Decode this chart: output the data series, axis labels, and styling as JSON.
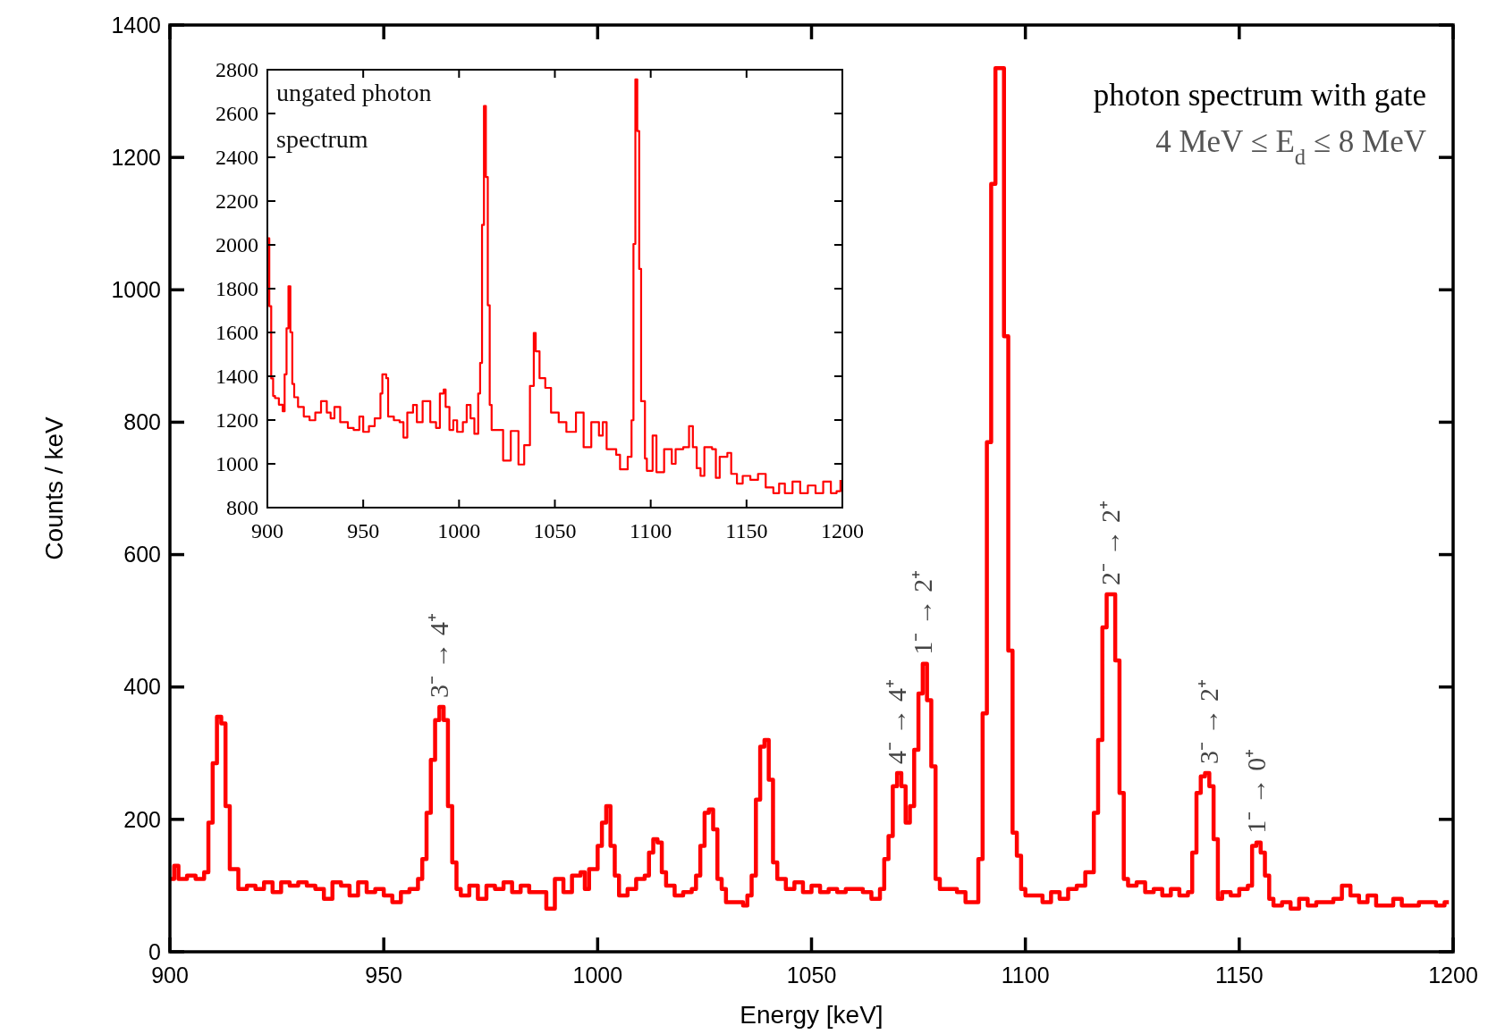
{
  "chart_data": [
    {
      "type": "step",
      "xlabel": "Energy [keV]",
      "ylabel": "Counts / keV",
      "xlim": [
        900,
        1200
      ],
      "xticks": [
        900,
        950,
        1000,
        1050,
        1100,
        1150,
        1200
      ],
      "ylim": [
        0,
        1400
      ],
      "yticks": [
        0,
        200,
        400,
        600,
        800,
        1000,
        1200,
        1400
      ],
      "series": [
        {
          "color": "#ff0000",
          "x": [
            900,
            901,
            902,
            904,
            906,
            908,
            909,
            910,
            911,
            912,
            913,
            914,
            915,
            916,
            918,
            920,
            922,
            924,
            926,
            928,
            930,
            932,
            934,
            936,
            938,
            940,
            942,
            944,
            946,
            948,
            950,
            952,
            954,
            956,
            958,
            959,
            960,
            961,
            962,
            963,
            964,
            965,
            966,
            967,
            968,
            970,
            972,
            974,
            976,
            978,
            980,
            982,
            984,
            986,
            988,
            990,
            992,
            994,
            996,
            997,
            998,
            1000,
            1001,
            1002,
            1003,
            1004,
            1005,
            1007,
            1009,
            1011,
            1012,
            1013,
            1014,
            1015,
            1016,
            1018,
            1020,
            1022,
            1023,
            1024,
            1025,
            1026,
            1027,
            1028,
            1029,
            1030,
            1032,
            1034,
            1035,
            1036,
            1037,
            1038,
            1039,
            1040,
            1041,
            1042,
            1044,
            1046,
            1048,
            1050,
            1052,
            1054,
            1056,
            1058,
            1060,
            1062,
            1064,
            1066,
            1067,
            1068,
            1069,
            1070,
            1071,
            1072,
            1073,
            1074,
            1075,
            1076,
            1077,
            1078,
            1079,
            1080,
            1082,
            1084,
            1086,
            1088,
            1089,
            1090,
            1091,
            1092,
            1093,
            1094,
            1095,
            1096,
            1097,
            1098,
            1099,
            1100,
            1102,
            1104,
            1106,
            1108,
            1110,
            1112,
            1114,
            1116,
            1117,
            1118,
            1119,
            1120,
            1121,
            1122,
            1123,
            1124,
            1126,
            1128,
            1130,
            1132,
            1134,
            1136,
            1138,
            1139,
            1140,
            1141,
            1142,
            1143,
            1144,
            1145,
            1146,
            1148,
            1150,
            1152,
            1153,
            1154,
            1155,
            1156,
            1157,
            1158,
            1160,
            1162,
            1164,
            1166,
            1168,
            1170,
            1172,
            1174,
            1176,
            1178,
            1180,
            1182,
            1184,
            1186,
            1188,
            1190,
            1192,
            1194,
            1196,
            1198,
            1199
          ],
          "values": [
            110,
            130,
            110,
            115,
            110,
            120,
            195,
            285,
            355,
            345,
            220,
            125,
            125,
            95,
            100,
            95,
            105,
            90,
            105,
            100,
            105,
            100,
            95,
            80,
            105,
            100,
            85,
            105,
            90,
            95,
            85,
            75,
            90,
            95,
            110,
            140,
            210,
            290,
            350,
            370,
            350,
            220,
            135,
            95,
            85,
            100,
            80,
            100,
            95,
            105,
            90,
            100,
            90,
            90,
            65,
            110,
            90,
            115,
            120,
            95,
            125,
            160,
            195,
            220,
            160,
            115,
            85,
            95,
            110,
            115,
            150,
            170,
            165,
            120,
            100,
            85,
            90,
            95,
            115,
            160,
            210,
            215,
            185,
            110,
            95,
            75,
            75,
            70,
            85,
            115,
            230,
            310,
            320,
            260,
            135,
            110,
            95,
            105,
            90,
            100,
            90,
            95,
            90,
            95,
            95,
            90,
            80,
            95,
            140,
            175,
            250,
            270,
            250,
            195,
            220,
            305,
            390,
            435,
            380,
            280,
            110,
            95,
            95,
            90,
            75,
            75,
            140,
            360,
            770,
            1160,
            1335,
            1335,
            930,
            455,
            180,
            145,
            95,
            85,
            85,
            75,
            90,
            80,
            95,
            100,
            120,
            210,
            320,
            490,
            540,
            540,
            440,
            240,
            110,
            100,
            105,
            90,
            95,
            85,
            95,
            85,
            90,
            150,
            240,
            265,
            270,
            250,
            170,
            80,
            90,
            85,
            95,
            100,
            160,
            165,
            150,
            115,
            80,
            70,
            75,
            65,
            80,
            70,
            75,
            75,
            80,
            100,
            85,
            75,
            85,
            70,
            70,
            80,
            70,
            70,
            75,
            75,
            70,
            75,
            75
          ]
        }
      ],
      "annotations": [
        "photon spectrum with gate",
        "4 MeV ≤ E$_{d}$ ≤ 8 MeV",
        {
          "text": "3⁻ → 4⁺",
          "x": 963,
          "y": 370
        },
        {
          "text": "4⁻ → 4⁺",
          "x": 1070,
          "y": 270
        },
        {
          "text": "1⁻ → 2⁺",
          "x": 1076,
          "y": 435
        },
        {
          "text": "2⁻ → 2⁺",
          "x": 1120,
          "y": 540
        },
        {
          "text": "3⁻ → 2⁺",
          "x": 1143,
          "y": 270
        },
        {
          "text": "1⁻ → 0⁺",
          "x": 1154,
          "y": 165
        }
      ]
    },
    {
      "type": "step",
      "xlim": [
        900,
        1200
      ],
      "xticks": [
        900,
        950,
        1000,
        1050,
        1100,
        1150,
        1200
      ],
      "ylim": [
        800,
        2800
      ],
      "yticks": [
        800,
        1000,
        1200,
        1400,
        1600,
        1800,
        2000,
        2200,
        2400,
        2600,
        2800
      ],
      "series": [
        {
          "color": "#ff0000",
          "x": [
            900,
            901,
            902,
            903,
            904,
            906,
            908,
            909,
            910,
            911,
            912,
            913,
            914,
            916,
            919,
            922,
            925,
            928,
            931,
            933,
            935,
            938,
            942,
            945,
            948,
            950,
            953,
            956,
            959,
            960,
            962,
            963,
            966,
            969,
            971,
            973,
            976,
            978,
            981,
            985,
            988,
            990,
            992,
            993,
            995,
            997,
            999,
            1002,
            1004,
            1006,
            1008,
            1010,
            1011,
            1012,
            1013,
            1014,
            1015,
            1016,
            1017,
            1020,
            1023,
            1027,
            1031,
            1034,
            1037,
            1039,
            1040,
            1042,
            1045,
            1048,
            1052,
            1056,
            1061,
            1065,
            1069,
            1073,
            1075,
            1077,
            1082,
            1084,
            1088,
            1090,
            1091,
            1092,
            1093,
            1094,
            1095,
            1097,
            1098,
            1101,
            1103,
            1107,
            1111,
            1113,
            1117,
            1120,
            1122,
            1124,
            1126,
            1128,
            1132,
            1134,
            1136,
            1140,
            1142,
            1145,
            1148,
            1152,
            1156,
            1160,
            1164,
            1167,
            1170,
            1174,
            1178,
            1182,
            1186,
            1190,
            1194,
            1197,
            1199
          ],
          "values": [
            2030,
            1720,
            1390,
            1310,
            1300,
            1270,
            1240,
            1409,
            1619,
            1811,
            1601,
            1365,
            1304,
            1260,
            1216,
            1199,
            1234,
            1286,
            1234,
            1208,
            1260,
            1190,
            1164,
            1155,
            1216,
            1146,
            1172,
            1208,
            1321,
            1409,
            1391,
            1216,
            1199,
            1190,
            1120,
            1234,
            1269,
            1190,
            1286,
            1190,
            1164,
            1321,
            1339,
            1260,
            1155,
            1199,
            1146,
            1190,
            1269,
            1208,
            1137,
            1321,
            1461,
            2091,
            2634,
            2310,
            1724,
            1269,
            1155,
            1155,
            1015,
            1150,
            997,
            1085,
            1356,
            1598,
            1514,
            1391,
            1347,
            1234,
            1190,
            1146,
            1234,
            1076,
            1190,
            1129,
            1190,
            1067,
            1041,
            975,
            1032,
            1199,
            2004,
            2756,
            2520,
            1890,
            1286,
            1024,
            968,
            1129,
            962,
            1067,
            1000,
            1067,
            1076,
            1172,
            1076,
            980,
            945,
            1076,
            1067,
            936,
            1032,
            1050,
            954,
            910,
            945,
            927,
            954,
            892,
            866,
            910,
            866,
            919,
            866,
            901,
            866,
            919,
            866,
            875,
            927
          ]
        }
      ],
      "annotations": [
        "ungated photon spectrum"
      ]
    }
  ]
}
